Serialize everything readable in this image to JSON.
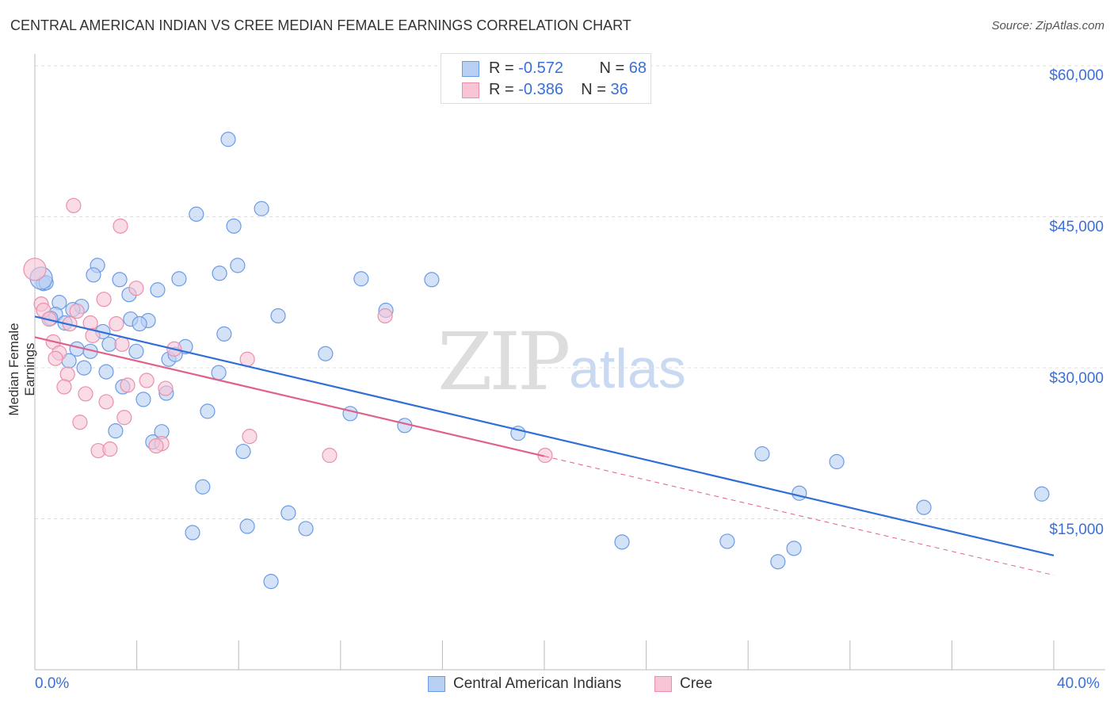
{
  "title": "CENTRAL AMERICAN INDIAN VS CREE MEDIAN FEMALE EARNINGS CORRELATION CHART",
  "source": "Source: ZipAtlas.com",
  "watermark": {
    "zip": "ZIP",
    "atlas": "atlas"
  },
  "legend": {
    "rows": [
      {
        "r_label": "R =",
        "r": "-0.572",
        "n_label": "N =",
        "n": "68"
      },
      {
        "r_label": "R =",
        "r": "-0.386",
        "n_label": "N =",
        "n": "36"
      }
    ]
  },
  "chart_data": {
    "type": "scatter",
    "title": "CENTRAL AMERICAN INDIAN VS CREE MEDIAN FEMALE EARNINGS CORRELATION CHART",
    "xlabel": "",
    "ylabel": "Median Female Earnings",
    "xlim": [
      0,
      40
    ],
    "ylim": [
      0,
      61500
    ],
    "x_tick_labels": [
      "0.0%",
      "40.0%"
    ],
    "y_ticks": [
      15000,
      30000,
      45000,
      60000
    ],
    "y_tick_labels": [
      "$15,000",
      "$30,000",
      "$45,000",
      "$60,000"
    ],
    "grid": true,
    "series": [
      {
        "name": "Central American Indians",
        "color": "#6b9be6",
        "fill": "#b7cff3",
        "line_color": "#2f6fd6",
        "trend": {
          "x0": 0,
          "y0": 35100,
          "x1": 40,
          "y1": 11350,
          "solid_to": 40
        },
        "points": [
          [
            7.59,
            52700
          ],
          [
            6.34,
            45260
          ],
          [
            8.9,
            45810
          ],
          [
            7.81,
            44080
          ],
          [
            2.46,
            40170
          ],
          [
            7.96,
            40170
          ],
          [
            2.3,
            39230
          ],
          [
            3.33,
            38760
          ],
          [
            7.25,
            39390
          ],
          [
            5.66,
            38840
          ],
          [
            12.81,
            38840
          ],
          [
            15.58,
            38760
          ],
          [
            0.34,
            38370
          ],
          [
            0.44,
            38450
          ],
          [
            3.7,
            37270
          ],
          [
            4.82,
            37740
          ],
          [
            0.96,
            36490
          ],
          [
            1.83,
            36100
          ],
          [
            1.49,
            35780
          ],
          [
            13.78,
            35710
          ],
          [
            0.81,
            35310
          ],
          [
            0.62,
            34920
          ],
          [
            1.18,
            34450
          ],
          [
            3.76,
            34840
          ],
          [
            4.45,
            34690
          ],
          [
            4.11,
            34370
          ],
          [
            9.55,
            35160
          ],
          [
            2.67,
            33590
          ],
          [
            7.43,
            33360
          ],
          [
            1.65,
            31870
          ],
          [
            2.18,
            31630
          ],
          [
            2.92,
            32340
          ],
          [
            3.98,
            31630
          ],
          [
            5.91,
            32100
          ],
          [
            5.26,
            30850
          ],
          [
            5.51,
            31320
          ],
          [
            1.34,
            30690
          ],
          [
            11.41,
            31400
          ],
          [
            1.93,
            29990
          ],
          [
            2.8,
            29600
          ],
          [
            7.22,
            29520
          ],
          [
            3.45,
            28110
          ],
          [
            5.16,
            27480
          ],
          [
            4.26,
            26860
          ],
          [
            12.38,
            25450
          ],
          [
            6.78,
            25680
          ],
          [
            14.52,
            24270
          ],
          [
            3.17,
            23730
          ],
          [
            4.98,
            23650
          ],
          [
            18.97,
            23490
          ],
          [
            4.63,
            22630
          ],
          [
            8.18,
            21690
          ],
          [
            28.55,
            21450
          ],
          [
            31.48,
            20670
          ],
          [
            30.01,
            17540
          ],
          [
            39.53,
            17460
          ],
          [
            6.59,
            18170
          ],
          [
            34.9,
            16130
          ],
          [
            9.95,
            15580
          ],
          [
            6.19,
            13620
          ],
          [
            8.34,
            14250
          ],
          [
            10.64,
            14020
          ],
          [
            23.05,
            12690
          ],
          [
            27.18,
            12760
          ],
          [
            29.8,
            12060
          ],
          [
            29.17,
            10730
          ],
          [
            9.27,
            8770
          ],
          [
            0.25,
            38900
          ]
        ]
      },
      {
        "name": "Cree",
        "color": "#eb8fab",
        "fill": "#f7c5d5",
        "line_color": "#e0628a",
        "trend": {
          "x0": 0,
          "y0": 33040,
          "x1": 40,
          "y1": 9400,
          "solid_to": 20
        },
        "points": [
          [
            1.52,
            46120
          ],
          [
            3.36,
            44080
          ],
          [
            0.0,
            39780
          ],
          [
            3.98,
            37900
          ],
          [
            0.25,
            36330
          ],
          [
            2.71,
            36800
          ],
          [
            0.34,
            35710
          ],
          [
            1.65,
            35630
          ],
          [
            1.37,
            34370
          ],
          [
            2.18,
            34450
          ],
          [
            3.2,
            34370
          ],
          [
            13.75,
            35160
          ],
          [
            0.72,
            32570
          ],
          [
            3.42,
            32340
          ],
          [
            2.27,
            33200
          ],
          [
            0.96,
            31480
          ],
          [
            0.81,
            30930
          ],
          [
            5.47,
            31870
          ],
          [
            8.34,
            30850
          ],
          [
            1.28,
            29360
          ],
          [
            4.39,
            28740
          ],
          [
            1.15,
            28110
          ],
          [
            3.64,
            28270
          ],
          [
            5.13,
            27950
          ],
          [
            1.99,
            27410
          ],
          [
            2.8,
            26620
          ],
          [
            3.51,
            25060
          ],
          [
            1.77,
            24590
          ],
          [
            8.43,
            23180
          ],
          [
            4.98,
            22470
          ],
          [
            4.76,
            22240
          ],
          [
            2.49,
            21770
          ],
          [
            2.95,
            21920
          ],
          [
            11.57,
            21300
          ],
          [
            20.03,
            21300
          ],
          [
            0.56,
            34840
          ]
        ]
      }
    ]
  }
}
